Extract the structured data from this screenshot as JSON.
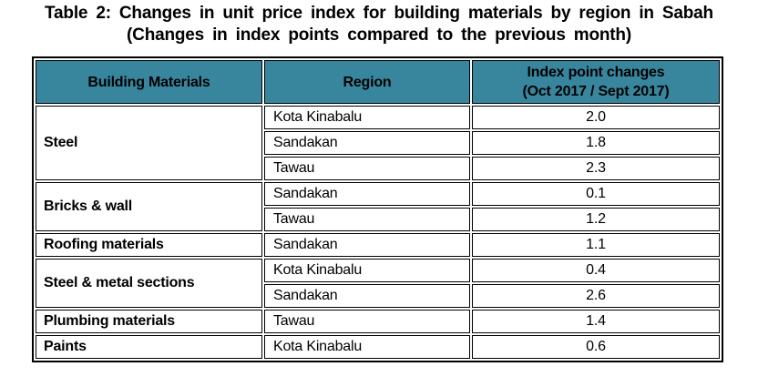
{
  "title": {
    "line1": "Table 2: Changes in unit price index for building materials by region in Sabah",
    "line2": "(Changes in index points compared to the previous month)"
  },
  "colors": {
    "header_bg": "#38869E",
    "border": "#000000",
    "text": "#000000"
  },
  "table": {
    "headers": {
      "material": "Building Materials",
      "region": "Region",
      "index_line1": "Index point changes",
      "index_line2": "(Oct 2017 / Sept 2017)"
    },
    "groups": [
      {
        "material": "Steel",
        "rows": [
          {
            "region": "Kota Kinabalu",
            "value": "2.0"
          },
          {
            "region": "Sandakan",
            "value": "1.8"
          },
          {
            "region": "Tawau",
            "value": "2.3"
          }
        ]
      },
      {
        "material": "Bricks & wall",
        "rows": [
          {
            "region": "Sandakan",
            "value": "0.1"
          },
          {
            "region": "Tawau",
            "value": "1.2"
          }
        ]
      },
      {
        "material": "Roofing materials",
        "rows": [
          {
            "region": "Sandakan",
            "value": "1.1"
          }
        ]
      },
      {
        "material": "Steel & metal sections",
        "rows": [
          {
            "region": "Kota Kinabalu",
            "value": "0.4"
          },
          {
            "region": "Sandakan",
            "value": "2.6"
          }
        ]
      },
      {
        "material": "Plumbing materials",
        "rows": [
          {
            "region": "Tawau",
            "value": "1.4"
          }
        ]
      },
      {
        "material": "Paints",
        "rows": [
          {
            "region": "Kota Kinabalu",
            "value": "0.6"
          }
        ]
      }
    ]
  }
}
